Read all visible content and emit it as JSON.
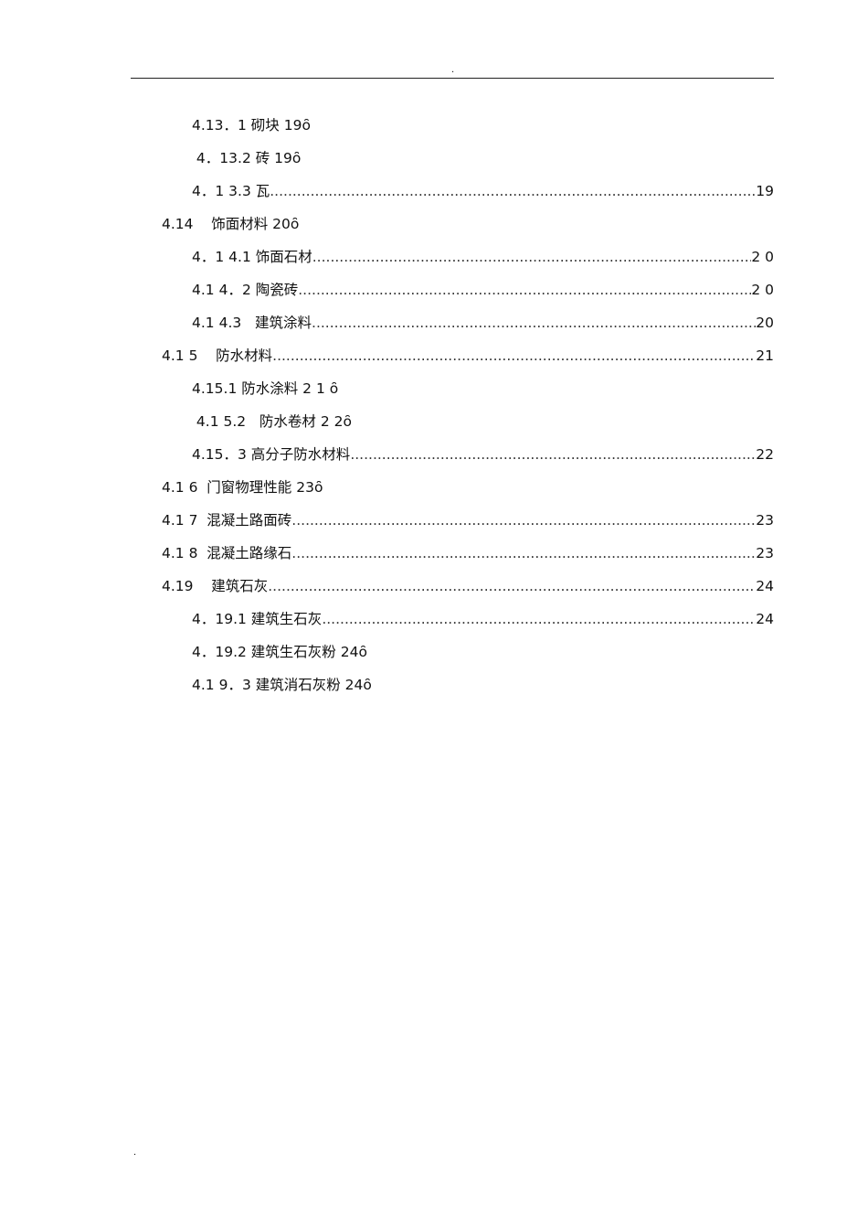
{
  "header": {
    "mark": "."
  },
  "footer": {
    "mark": "."
  },
  "toc": [
    {
      "level": 2,
      "text": "4.13．1 砌块 19ȏ",
      "page": ""
    },
    {
      "level": 2,
      "text": " 4．13.2 砖 19ȏ",
      "page": ""
    },
    {
      "level": 2,
      "text": "4．1 3.3 瓦",
      "page": "19"
    },
    {
      "level": 1,
      "text": "4.14    饰面材料 20ȏ",
      "page": ""
    },
    {
      "level": 2,
      "text": "4．1 4.1 饰面石材",
      "page": "2 0"
    },
    {
      "level": 2,
      "text": "4.1 4．2 陶瓷砖",
      "page": "2 0"
    },
    {
      "level": 2,
      "text": "4.1 4.3   建筑涂料",
      "page": "20"
    },
    {
      "level": 1,
      "text": "4.1 5    防水材料",
      "page": "21"
    },
    {
      "level": 2,
      "text": "4.15.1 防水涂料 2 1 ȏ",
      "page": ""
    },
    {
      "level": 2,
      "text": " 4.1 5.2   防水卷材 2 2ȏ",
      "page": ""
    },
    {
      "level": 2,
      "text": "4.15．3 高分子防水材料",
      "page": "22"
    },
    {
      "level": 1,
      "text": "4.1 6  门窗物理性能 23ȏ",
      "page": ""
    },
    {
      "level": 1,
      "text": "4.1 7  混凝土路面砖",
      "page": "23"
    },
    {
      "level": 1,
      "text": "4.1 8  混凝土路缘石",
      "page": "23"
    },
    {
      "level": 1,
      "text": "4.19    建筑石灰",
      "page": "24"
    },
    {
      "level": 2,
      "text": "4．19.1 建筑生石灰",
      "page": "24"
    },
    {
      "level": 2,
      "text": "4．19.2 建筑生石灰粉 24ȏ",
      "page": ""
    },
    {
      "level": 2,
      "text": "4.1 9．3 建筑消石灰粉 24ȏ",
      "page": ""
    }
  ]
}
